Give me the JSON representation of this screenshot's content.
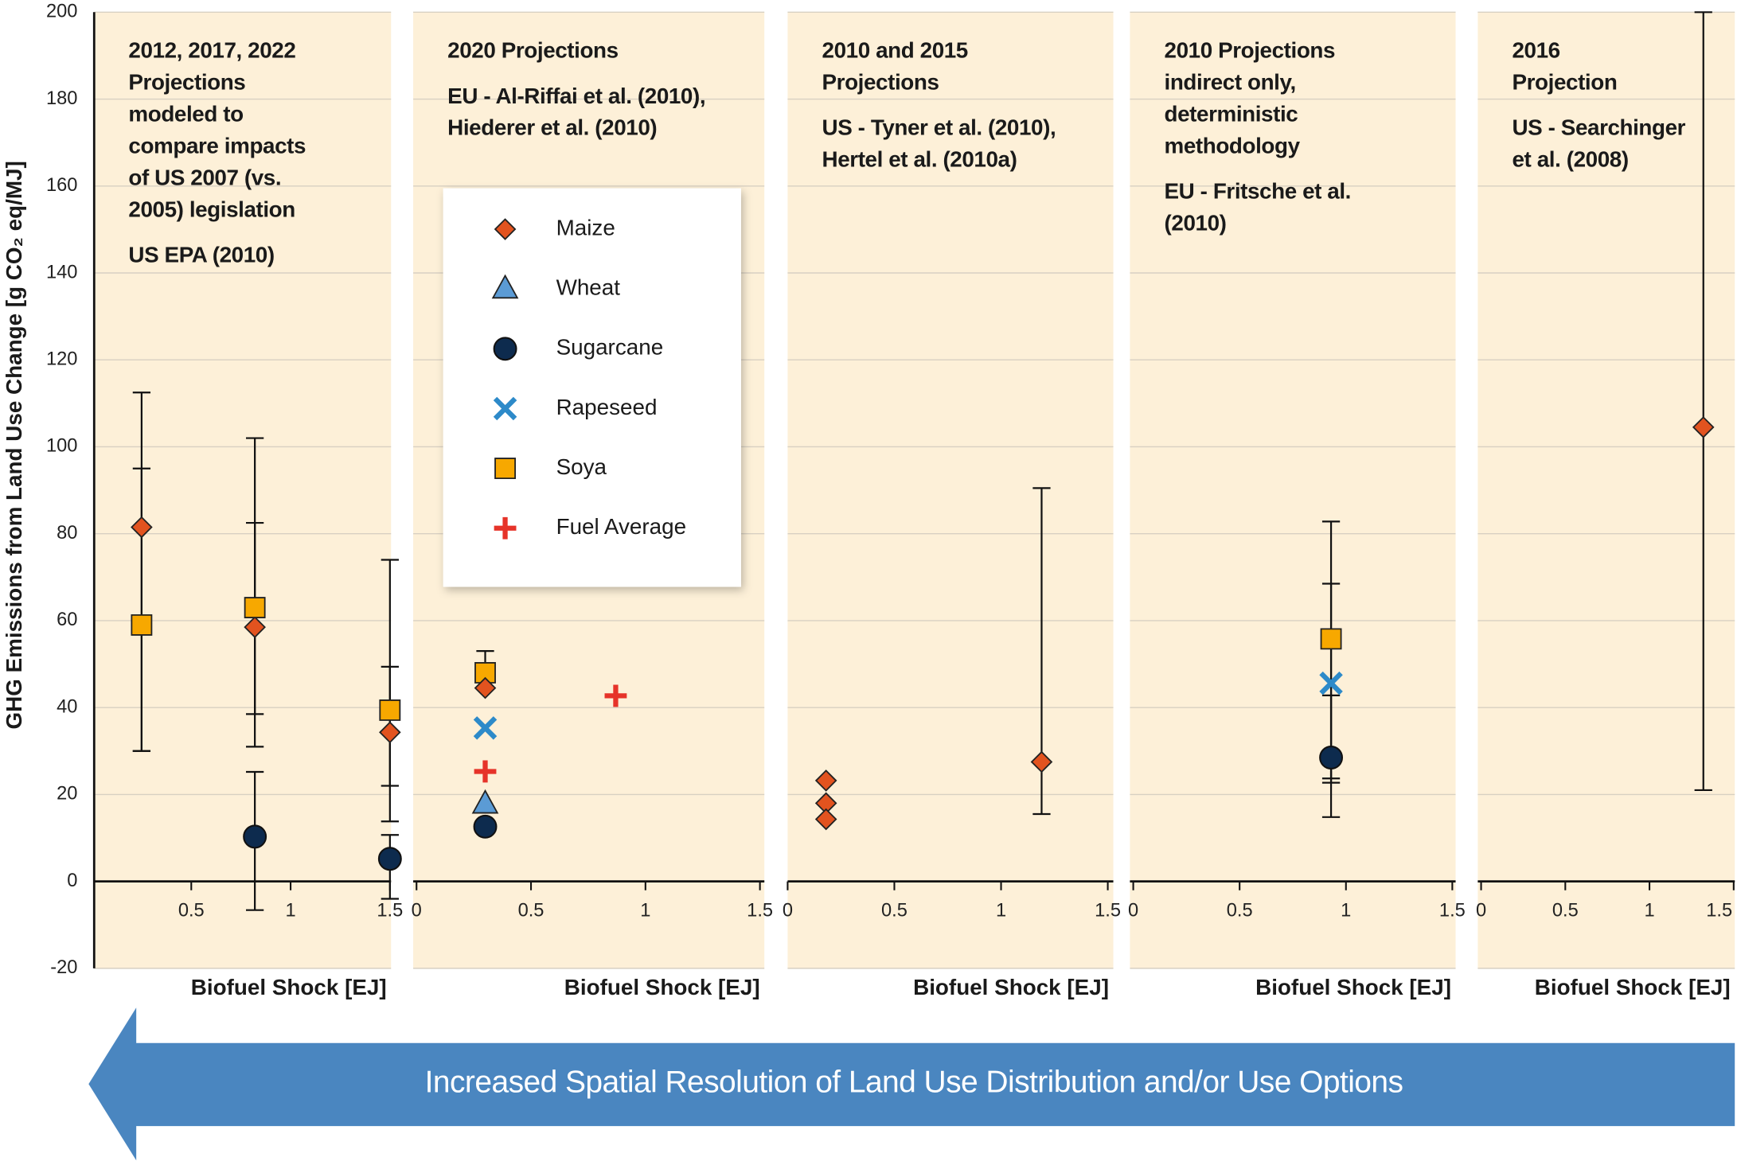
{
  "legend": [
    {
      "name": "Maize",
      "color": "#e2531f",
      "marker": "diamond"
    },
    {
      "name": "Wheat",
      "color": "#5b9bd5",
      "marker": "triangle"
    },
    {
      "name": "Sugarcane",
      "color": "#0d2b4e",
      "marker": "circle"
    },
    {
      "name": "Rapeseed",
      "color": "#2d8ac9",
      "marker": "cross"
    },
    {
      "name": "Soya",
      "color": "#f7a800",
      "marker": "square"
    },
    {
      "name": "Fuel Average",
      "color": "#e63329",
      "marker": "plus"
    }
  ],
  "arrow_text": "Increased Spatial Resolution of Land Use Distribution and/or Use Options",
  "chart_data": [
    {
      "type": "scatter",
      "ylabel": "GHG Emissions from Land Use Change [g CO₂ eq/MJ]",
      "ylim": [
        -20,
        200
      ],
      "yticks": [
        -20,
        0,
        20,
        40,
        60,
        80,
        100,
        120,
        140,
        160,
        180,
        200
      ],
      "grid": true,
      "notes": [
        [
          "2012, 2017, 2022",
          "Projections",
          "modeled to",
          "compare impacts",
          "of US 2007  (vs.",
          "2005) legislation"
        ],
        [
          "US EPA (2010)"
        ]
      ],
      "xlabel": "Biofuel Shock [EJ]",
      "xlim": [
        0,
        1.5
      ],
      "xticks": [
        0.5,
        1,
        1.5
      ],
      "series": [
        {
          "name": "Maize",
          "x": [
            0.25,
            0.82,
            1.5
          ],
          "values": [
            81.5,
            58.5,
            34.3
          ],
          "y_low": [
            30,
            38.5,
            13.8
          ],
          "y_high": [
            112.5,
            82.5,
            49.4
          ]
        },
        {
          "name": "Soya",
          "x": [
            0.25,
            0.82,
            1.5
          ],
          "values": [
            59,
            63,
            39.4
          ],
          "y_low": [
            30,
            31,
            22
          ],
          "y_high": [
            95,
            102,
            74
          ]
        },
        {
          "name": "Sugarcane",
          "x": [
            0.82,
            1.5
          ],
          "values": [
            10.3,
            5.2
          ],
          "y_low": [
            -6.6,
            -4
          ],
          "y_high": [
            25.2,
            10.7
          ]
        }
      ]
    },
    {
      "type": "scatter",
      "ylim": [
        -20,
        200
      ],
      "notes": [
        [
          "2020 Projections"
        ],
        [
          "EU -  Al-Riffai et al. (2010),",
          "Hiederer et al. (2010)"
        ]
      ],
      "xlabel": "Biofuel Shock [EJ]",
      "xlim": [
        0,
        1.5
      ],
      "xticks": [
        0,
        0.5,
        1,
        1.5
      ],
      "series": [
        {
          "name": "Soya",
          "x": [
            0.3
          ],
          "values": [
            48
          ],
          "y_low": [
            null
          ],
          "y_high": [
            53
          ]
        },
        {
          "name": "Maize",
          "x": [
            0.3
          ],
          "values": [
            44.5
          ],
          "y_low": [
            null
          ],
          "y_high": [
            null
          ]
        },
        {
          "name": "Rapeseed",
          "x": [
            0.3
          ],
          "values": [
            35.3
          ],
          "y_low": [
            null
          ],
          "y_high": [
            null
          ]
        },
        {
          "name": "Fuel Average",
          "x": [
            0.3,
            0.87
          ],
          "values": [
            25.3,
            42.7
          ],
          "y_low": [
            null,
            null
          ],
          "y_high": [
            null,
            null
          ]
        },
        {
          "name": "Wheat",
          "x": [
            0.3
          ],
          "values": [
            17.8
          ],
          "y_low": [
            null
          ],
          "y_high": [
            null
          ]
        },
        {
          "name": "Sugarcane",
          "x": [
            0.3
          ],
          "values": [
            12.6
          ],
          "y_low": [
            null
          ],
          "y_high": [
            null
          ]
        }
      ]
    },
    {
      "type": "scatter",
      "ylim": [
        -20,
        200
      ],
      "notes": [
        [
          "2010 and 2015",
          "Projections"
        ],
        [
          "US - Tyner et al. (2010),",
          "Hertel et al. (2010a)"
        ]
      ],
      "xlabel": "Biofuel Shock [EJ]",
      "xlim": [
        0,
        1.5
      ],
      "xticks": [
        0,
        0.5,
        1,
        1.5
      ],
      "series": [
        {
          "name": "Maize",
          "x": [
            0.18,
            0.18,
            0.18,
            1.19
          ],
          "values": [
            23.2,
            18,
            14.3,
            27.5
          ],
          "y_low": [
            null,
            null,
            null,
            15.5
          ],
          "y_high": [
            null,
            null,
            null,
            90.5
          ]
        }
      ]
    },
    {
      "type": "scatter",
      "ylim": [
        -20,
        200
      ],
      "notes": [
        [
          "2010 Projections",
          "indirect only,",
          "deterministic",
          "methodology"
        ],
        [
          "EU - Fritsche et al.",
          "(2010)"
        ]
      ],
      "xlabel": "Biofuel Shock [EJ]",
      "xlim": [
        0,
        1.5
      ],
      "xticks": [
        0,
        0.5,
        1,
        1.5
      ],
      "series": [
        {
          "name": "Soya",
          "x": [
            0.93
          ],
          "values": [
            55.8
          ],
          "y_low": [
            22.7
          ],
          "y_high": [
            82.8
          ]
        },
        {
          "name": "Rapeseed",
          "x": [
            0.93
          ],
          "values": [
            45.6
          ],
          "y_low": [
            23.7
          ],
          "y_high": [
            68.5
          ]
        },
        {
          "name": "Sugarcane",
          "x": [
            0.93
          ],
          "values": [
            28.5
          ],
          "y_low": [
            14.8
          ],
          "y_high": [
            42.8
          ]
        }
      ]
    },
    {
      "type": "scatter",
      "ylim": [
        -20,
        200
      ],
      "notes": [
        [
          "2016",
          "Projection"
        ],
        [
          "US - Searchinger",
          "et al. (2008)"
        ]
      ],
      "xlabel": "Biofuel Shock [EJ]",
      "xlim": [
        0,
        1.5
      ],
      "xticks": [
        0,
        0.5,
        1,
        1.5
      ],
      "series": [
        {
          "name": "Maize",
          "x": [
            1.32
          ],
          "values": [
            104.5
          ],
          "y_low": [
            21
          ],
          "y_high": [
            200
          ]
        }
      ]
    }
  ]
}
